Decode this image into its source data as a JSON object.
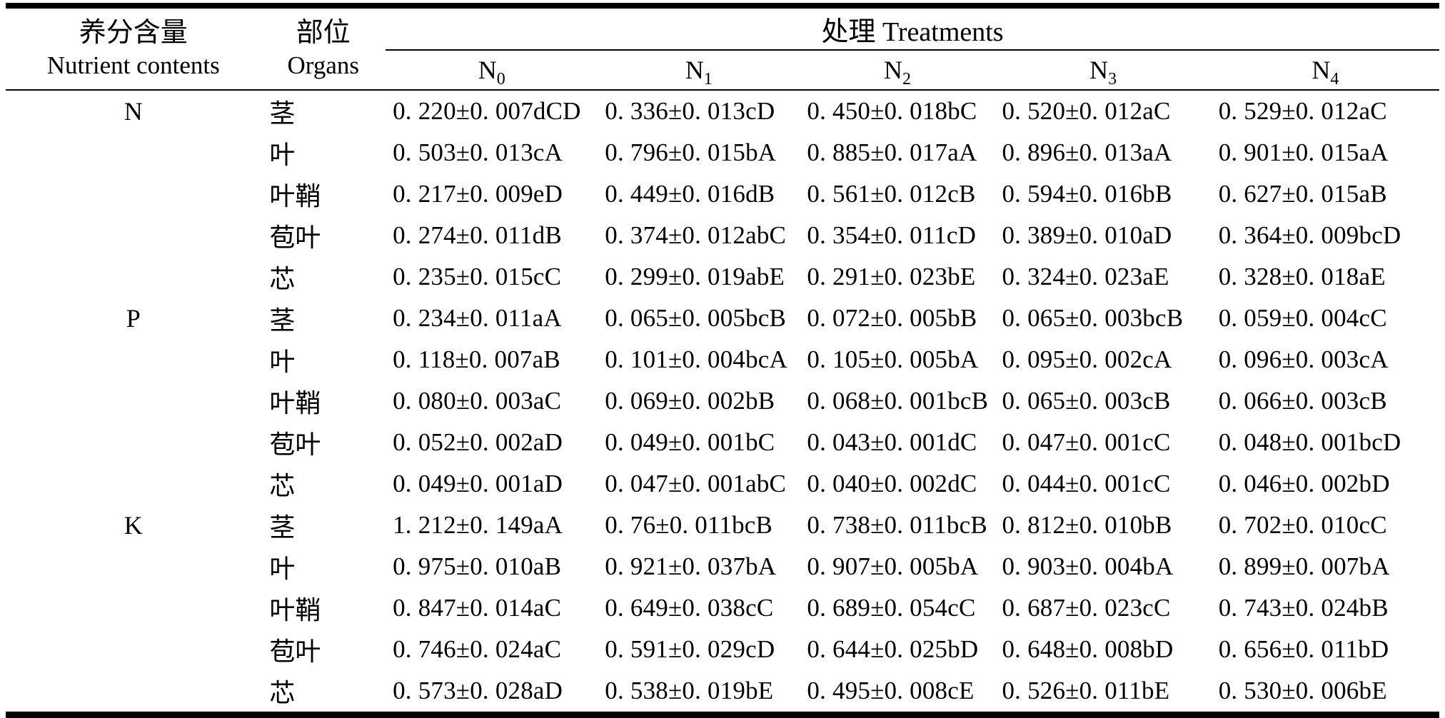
{
  "page": {
    "background": "#ffffff",
    "text_color": "#000000"
  },
  "table": {
    "col1_header_zh": "养分含量",
    "col1_header_en": "Nutrient contents",
    "col2_header_zh": "部位",
    "col2_header_en": "Organs",
    "treatments_header": "处理 Treatments",
    "treatments": [
      {
        "base": "N",
        "sub": "0"
      },
      {
        "base": "N",
        "sub": "1"
      },
      {
        "base": "N",
        "sub": "2"
      },
      {
        "base": "N",
        "sub": "3"
      },
      {
        "base": "N",
        "sub": "4"
      }
    ],
    "sections": [
      {
        "nutrient": "N",
        "rows": [
          {
            "organ": "茎",
            "values": [
              "0. 220±0. 007dCD",
              "0. 336±0. 013cD",
              "0. 450±0. 018bC",
              "0. 520±0. 012aC",
              "0. 529±0. 012aC"
            ]
          },
          {
            "organ": "叶",
            "values": [
              "0. 503±0. 013cA",
              "0. 796±0. 015bA",
              "0. 885±0. 017aA",
              "0. 896±0. 013aA",
              "0. 901±0. 015aA"
            ]
          },
          {
            "organ": "叶鞘",
            "values": [
              "0. 217±0. 009eD",
              "0. 449±0. 016dB",
              "0. 561±0. 012cB",
              "0. 594±0. 016bB",
              "0. 627±0. 015aB"
            ]
          },
          {
            "organ": "苞叶",
            "values": [
              "0. 274±0. 011dB",
              "0. 374±0. 012abC",
              "0. 354±0. 011cD",
              "0. 389±0. 010aD",
              "0. 364±0. 009bcD"
            ]
          },
          {
            "organ": "芯",
            "values": [
              "0. 235±0. 015cC",
              "0. 299±0. 019abE",
              "0. 291±0. 023bE",
              "0. 324±0. 023aE",
              "0. 328±0. 018aE"
            ]
          }
        ]
      },
      {
        "nutrient": "P",
        "rows": [
          {
            "organ": "茎",
            "values": [
              "0. 234±0. 011aA",
              "0. 065±0. 005bcB",
              "0. 072±0. 005bB",
              "0. 065±0. 003bcB",
              "0. 059±0. 004cC"
            ]
          },
          {
            "organ": "叶",
            "values": [
              "0. 118±0. 007aB",
              "0. 101±0. 004bcA",
              "0. 105±0. 005bA",
              "0. 095±0. 002cA",
              "0. 096±0. 003cA"
            ]
          },
          {
            "organ": "叶鞘",
            "values": [
              "0. 080±0. 003aC",
              "0. 069±0. 002bB",
              "0. 068±0. 001bcB",
              "0. 065±0. 003cB",
              "0. 066±0. 003cB"
            ]
          },
          {
            "organ": "苞叶",
            "values": [
              "0. 052±0. 002aD",
              "0. 049±0. 001bC",
              "0. 043±0. 001dC",
              "0. 047±0. 001cC",
              "0. 048±0. 001bcD"
            ]
          },
          {
            "organ": "芯",
            "values": [
              "0. 049±0. 001aD",
              "0. 047±0. 001abC",
              "0. 040±0. 002dC",
              "0. 044±0. 001cC",
              "0. 046±0. 002bD"
            ]
          }
        ]
      },
      {
        "nutrient": "K",
        "rows": [
          {
            "organ": "茎",
            "values": [
              "1. 212±0. 149aA",
              "0. 76±0. 011bcB",
              "0. 738±0. 011bcB",
              "0. 812±0. 010bB",
              "0. 702±0. 010cC"
            ]
          },
          {
            "organ": "叶",
            "values": [
              "0. 975±0. 010aB",
              "0. 921±0. 037bA",
              "0. 907±0. 005bA",
              "0. 903±0. 004bA",
              "0. 899±0. 007bA"
            ]
          },
          {
            "organ": "叶鞘",
            "values": [
              "0. 847±0. 014aC",
              "0. 649±0. 038cC",
              "0. 689±0. 054cC",
              "0. 687±0. 023cC",
              "0. 743±0. 024bB"
            ]
          },
          {
            "organ": "苞叶",
            "values": [
              "0. 746±0. 024aC",
              "0. 591±0. 029cD",
              "0. 644±0. 025bD",
              "0. 648±0. 008bD",
              "0. 656±0. 011bD"
            ]
          },
          {
            "organ": "芯",
            "values": [
              "0. 573±0. 028aD",
              "0. 538±0. 019bE",
              "0. 495±0. 008cE",
              "0. 526±0. 011bE",
              "0. 530±0. 006bE"
            ]
          }
        ]
      }
    ]
  }
}
